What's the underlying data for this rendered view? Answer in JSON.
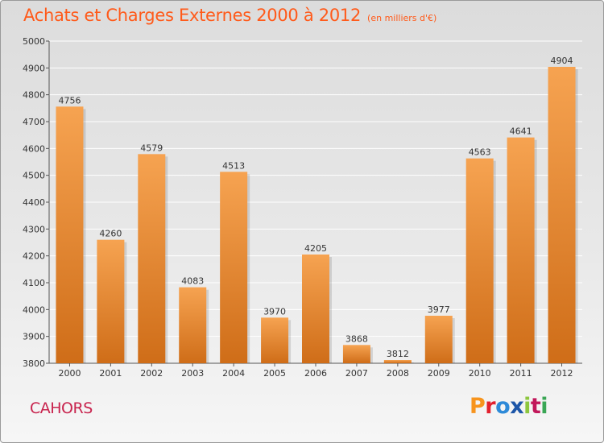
{
  "header": {
    "title": "Achats et Charges Externes 2000 à 2012",
    "subtitle": "(en milliers d'€)"
  },
  "footer": {
    "city": "CAHORS",
    "brand": "Proxiti",
    "brand_colors": [
      "#f7941d",
      "#e2202e",
      "#2e8ad8",
      "#1d56a8",
      "#8dc63f",
      "#c2185b",
      "#3aa655"
    ]
  },
  "colors": {
    "title": "#ff5a1a",
    "city": "#c8244e",
    "bar_top": "#f6a351",
    "bar_bottom": "#cf6d18"
  },
  "chart_data": {
    "type": "bar",
    "title": "Achats et Charges Externes 2000 à 2012",
    "categories": [
      "2000",
      "2001",
      "2002",
      "2003",
      "2004",
      "2005",
      "2006",
      "2007",
      "2008",
      "2009",
      "2010",
      "2011",
      "2012"
    ],
    "values": [
      4756,
      4260,
      4579,
      4083,
      4513,
      3970,
      4205,
      3868,
      3812,
      3977,
      4563,
      4641,
      4904
    ],
    "ylim": [
      3800,
      5000
    ],
    "yticks": [
      3800,
      3900,
      4000,
      4100,
      4200,
      4300,
      4400,
      4500,
      4600,
      4700,
      4800,
      4900,
      5000
    ],
    "grid": true,
    "xlabel": "",
    "ylabel": ""
  }
}
